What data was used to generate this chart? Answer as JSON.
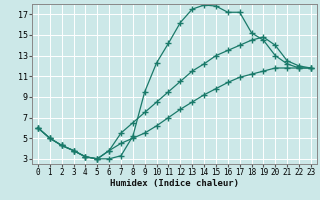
{
  "title": "",
  "xlabel": "Humidex (Indice chaleur)",
  "ylabel": "",
  "bg_color": "#cce8e8",
  "line_color": "#1a7a6a",
  "grid_color": "#b0d0d0",
  "xlim": [
    -0.5,
    23.5
  ],
  "ylim": [
    2.5,
    18.0
  ],
  "xticks": [
    0,
    1,
    2,
    3,
    4,
    5,
    6,
    7,
    8,
    9,
    10,
    11,
    12,
    13,
    14,
    15,
    16,
    17,
    18,
    19,
    20,
    21,
    22,
    23
  ],
  "yticks": [
    3,
    5,
    7,
    9,
    11,
    13,
    15,
    17
  ],
  "curve1_x": [
    0,
    1,
    2,
    3,
    4,
    5,
    6,
    7,
    8,
    9,
    10,
    11,
    12,
    13,
    14,
    15,
    16,
    17,
    18,
    19,
    20,
    21,
    22,
    23
  ],
  "curve1_y": [
    6.0,
    5.0,
    4.3,
    3.8,
    3.2,
    3.0,
    3.0,
    3.3,
    5.2,
    9.5,
    12.3,
    14.2,
    16.2,
    17.5,
    17.9,
    17.8,
    17.2,
    17.2,
    15.2,
    14.5,
    13.0,
    12.2,
    11.8,
    11.8
  ],
  "curve2_x": [
    0,
    1,
    2,
    3,
    4,
    5,
    6,
    7,
    8,
    9,
    10,
    11,
    12,
    13,
    14,
    15,
    16,
    17,
    18,
    19,
    20,
    21,
    22,
    23
  ],
  "curve2_y": [
    6.0,
    5.0,
    4.3,
    3.8,
    3.2,
    3.0,
    3.8,
    5.5,
    6.5,
    7.5,
    8.5,
    9.5,
    10.5,
    11.5,
    12.2,
    13.0,
    13.5,
    14.0,
    14.5,
    14.8,
    14.0,
    12.5,
    12.0,
    11.8
  ],
  "curve3_x": [
    0,
    1,
    2,
    3,
    4,
    5,
    6,
    7,
    8,
    9,
    10,
    11,
    12,
    13,
    14,
    15,
    16,
    17,
    18,
    19,
    20,
    21,
    22,
    23
  ],
  "curve3_y": [
    6.0,
    5.0,
    4.3,
    3.8,
    3.2,
    3.0,
    3.8,
    4.5,
    5.0,
    5.5,
    6.2,
    7.0,
    7.8,
    8.5,
    9.2,
    9.8,
    10.4,
    10.9,
    11.2,
    11.5,
    11.8,
    11.8,
    11.8,
    11.8
  ]
}
